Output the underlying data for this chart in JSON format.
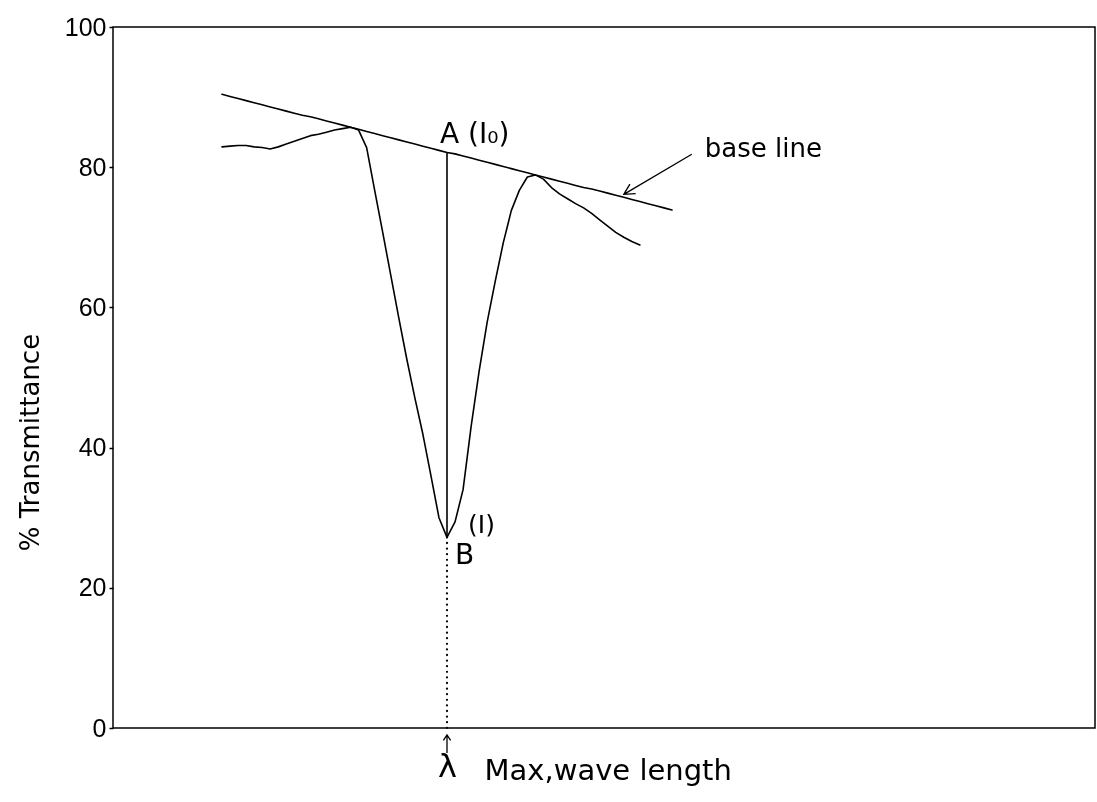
{
  "chart_data": {
    "type": "line",
    "ylabel": "% Transmittance",
    "xlabel": "Max,wave length",
    "categories": [
      null,
      null,
      null,
      null,
      null,
      null,
      null,
      null,
      null,
      null,
      null,
      null,
      null,
      null,
      null,
      null,
      null,
      null,
      null,
      null,
      null,
      null,
      null,
      null,
      null,
      null,
      null,
      null,
      "λ",
      null,
      null,
      null,
      null,
      null,
      null,
      null,
      null,
      null,
      null,
      null,
      null,
      null,
      null,
      null,
      null,
      null,
      null,
      null,
      null,
      null,
      null,
      null,
      null,
      null,
      null,
      null,
      null
    ],
    "ylim": [
      0,
      100
    ],
    "yticks": [
      0,
      20,
      40,
      60,
      80,
      100
    ],
    "series": [
      {
        "color": "#000000",
        "values": [
          82.9,
          83.0,
          83.1,
          83.1,
          82.9,
          82.8,
          82.6,
          82.9,
          83.3,
          83.7,
          84.1,
          84.5,
          84.7,
          85.0,
          85.3,
          85.5,
          85.7,
          85.3,
          82.8,
          76.7,
          70.7,
          64.6,
          58.5,
          52.6,
          47.1,
          41.9,
          36.0,
          30.0,
          27.2,
          29.4,
          34.0,
          43.0,
          50.9,
          57.9,
          63.7,
          69.2,
          73.8,
          76.7,
          78.6,
          78.9,
          78.3,
          77.1,
          76.2,
          75.5,
          74.8,
          74.2,
          73.4,
          72.5,
          71.6,
          70.7,
          70.0,
          69.4,
          68.9,
          null,
          null,
          null,
          null
        ]
      },
      {
        "name": "base line",
        "color": "#000000",
        "values": [
          90.4,
          90.1,
          89.8,
          89.5,
          89.2,
          88.9,
          88.6,
          88.3,
          88.0,
          87.7,
          87.4,
          87.2,
          86.9,
          86.6,
          86.3,
          86.0,
          85.7,
          85.4,
          85.1,
          84.8,
          84.5,
          84.2,
          83.9,
          83.6,
          83.3,
          83.0,
          82.7,
          82.4,
          82.1,
          81.9,
          81.6,
          81.3,
          81.0,
          80.7,
          80.4,
          80.1,
          79.8,
          79.5,
          79.2,
          78.9,
          78.6,
          78.3,
          78.0,
          77.7,
          77.4,
          77.1,
          76.9,
          76.6,
          76.3,
          76.0,
          75.7,
          75.4,
          75.1,
          74.8,
          74.5,
          74.2,
          73.9
        ]
      },
      {
        "color": "#000000",
        "x": [
          "λ",
          "λ"
        ],
        "values": [
          82.1,
          27.2
        ]
      },
      {
        "color": "#000000",
        "x": [
          "λ",
          "λ"
        ],
        "values": [
          27.2,
          0
        ],
        "line_style": "dotted"
      }
    ],
    "annotations": [
      {
        "text": "A (I₀)",
        "x": "λ",
        "y": 82.1
      },
      {
        "text": "B",
        "x": "λ",
        "y": 27.2
      },
      "(I)"
    ]
  }
}
